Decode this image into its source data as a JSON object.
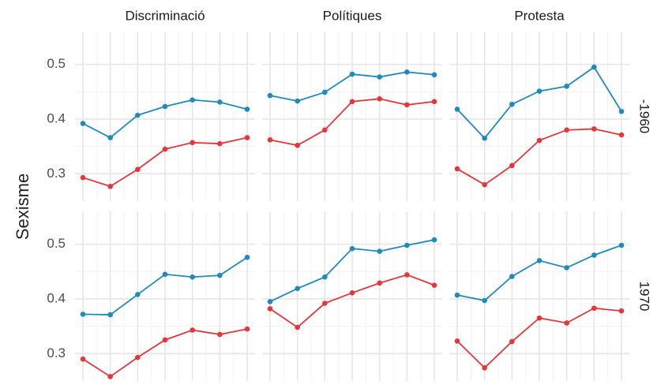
{
  "chart_data": {
    "type": "line",
    "ylabel": "Sexisme",
    "columns": [
      "Discriminació",
      "Polítiques",
      "Protesta"
    ],
    "rows": [
      "-1960",
      "1970"
    ],
    "categories": [
      null,
      null,
      null,
      null,
      null,
      null,
      null
    ],
    "ylim": [
      0.25,
      0.56
    ],
    "yticks": [
      0.3,
      0.4,
      0.5
    ],
    "grid": true,
    "panels": [
      {
        "series": [
          {
            "color": "#1f8ac0",
            "values": [
              0.392,
              0.366,
              0.407,
              0.423,
              0.435,
              0.431,
              0.418
            ]
          },
          {
            "color": "#e4363b",
            "values": [
              0.293,
              0.277,
              0.308,
              0.345,
              0.357,
              0.355,
              0.366
            ]
          }
        ]
      },
      {
        "series": [
          {
            "color": "#1f8ac0",
            "values": [
              0.443,
              0.433,
              0.449,
              0.482,
              0.477,
              0.486,
              0.481
            ]
          },
          {
            "color": "#e4363b",
            "values": [
              0.362,
              0.352,
              0.38,
              0.432,
              0.437,
              0.426,
              0.432
            ]
          }
        ]
      },
      {
        "series": [
          {
            "color": "#1f8ac0",
            "values": [
              0.418,
              0.365,
              0.427,
              0.451,
              0.46,
              0.495,
              0.414
            ]
          },
          {
            "color": "#e4363b",
            "values": [
              0.309,
              0.28,
              0.315,
              0.361,
              0.38,
              0.382,
              0.371
            ]
          }
        ]
      },
      {
        "series": [
          {
            "color": "#1f8ac0",
            "values": [
              0.372,
              0.371,
              0.408,
              0.445,
              0.44,
              0.443,
              0.476
            ]
          },
          {
            "color": "#e4363b",
            "values": [
              0.29,
              0.258,
              0.293,
              0.325,
              0.343,
              0.335,
              0.345
            ]
          }
        ]
      },
      {
        "series": [
          {
            "color": "#1f8ac0",
            "values": [
              0.395,
              0.419,
              0.44,
              0.492,
              0.487,
              0.498,
              0.508
            ]
          },
          {
            "color": "#e4363b",
            "values": [
              0.382,
              0.348,
              0.392,
              0.411,
              0.429,
              0.444,
              0.425
            ]
          }
        ]
      },
      {
        "series": [
          {
            "color": "#1f8ac0",
            "values": [
              0.407,
              0.397,
              0.441,
              0.47,
              0.457,
              0.48,
              0.498
            ]
          },
          {
            "color": "#e4363b",
            "values": [
              0.323,
              0.274,
              0.322,
              0.365,
              0.356,
              0.383,
              0.378
            ]
          }
        ]
      }
    ]
  }
}
